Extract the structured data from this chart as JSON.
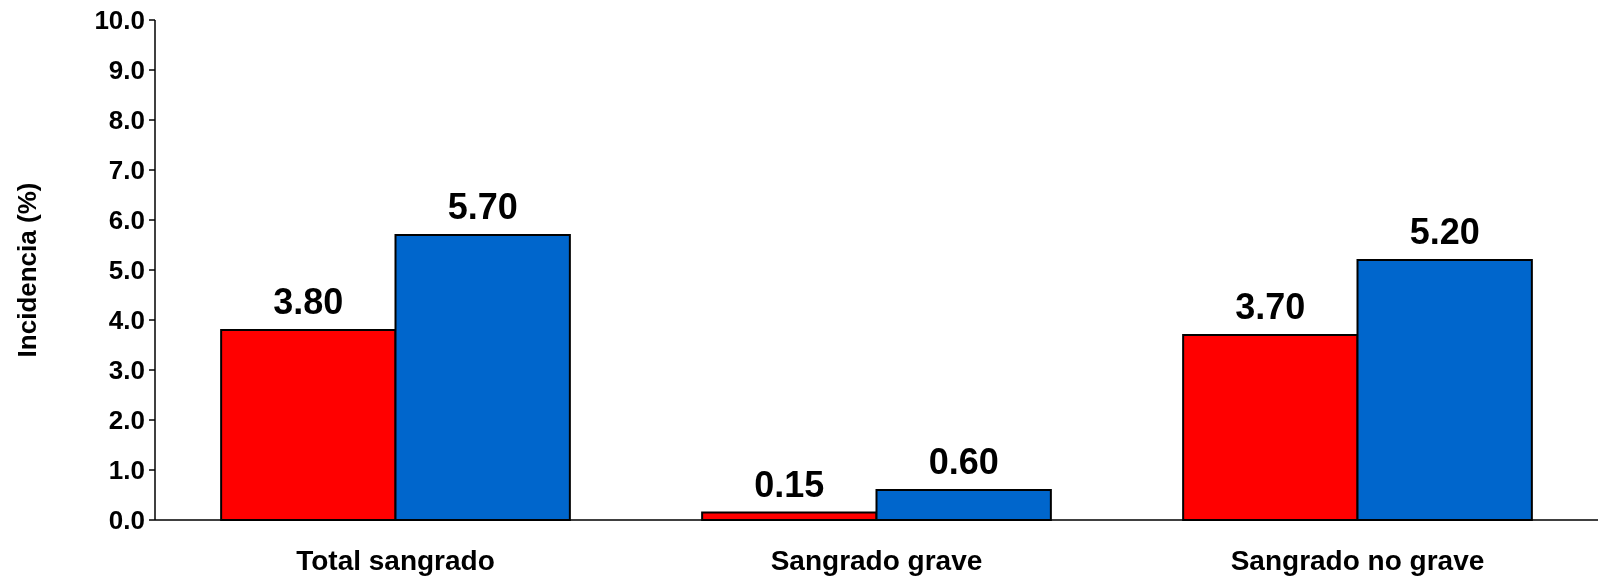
{
  "chart_data": {
    "type": "bar",
    "ylabel": "Incidencia (%)",
    "categories": [
      "Total sangrado",
      "Sangrado grave",
      "Sangrado no grave"
    ],
    "series": [
      {
        "color": "#ff0000",
        "values": [
          3.8,
          0.15,
          3.7
        ],
        "value_labels": [
          "3.80",
          "0.15",
          "3.70"
        ]
      },
      {
        "color": "#0066cc",
        "values": [
          5.7,
          0.6,
          5.2
        ],
        "value_labels": [
          "5.70",
          "0.60",
          "5.20"
        ]
      }
    ],
    "ylim": [
      0,
      10
    ],
    "yticks": [
      {
        "value": 0,
        "label": "0.0"
      },
      {
        "value": 1,
        "label": "1.0"
      },
      {
        "value": 2,
        "label": "2.0"
      },
      {
        "value": 3,
        "label": "3.0"
      },
      {
        "value": 4,
        "label": "4.0"
      },
      {
        "value": 5,
        "label": "5.0"
      },
      {
        "value": 6,
        "label": "6.0"
      },
      {
        "value": 7,
        "label": "7.0"
      },
      {
        "value": 8,
        "label": "8.0"
      },
      {
        "value": 9,
        "label": "9.0"
      },
      {
        "value": 10,
        "label": "10.0"
      }
    ],
    "grid": false
  }
}
